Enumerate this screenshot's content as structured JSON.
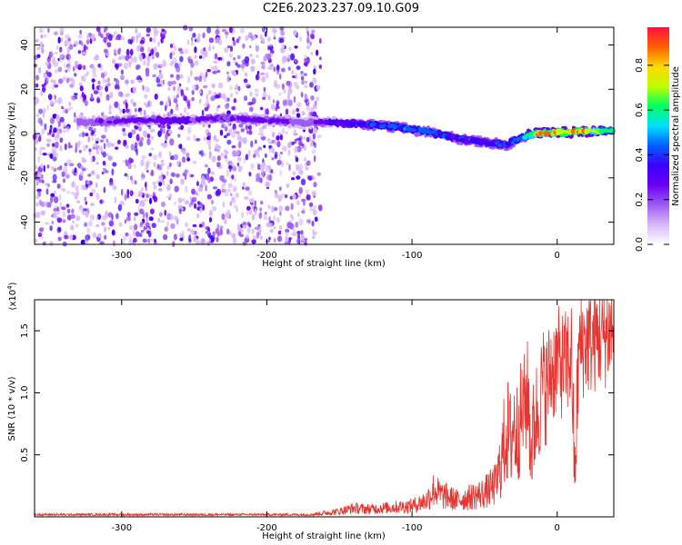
{
  "title": "C2E6.2023.237.09.10.G09",
  "chart_data": [
    {
      "type": "heatmap",
      "xlabel": "Height of straight line (km)",
      "ylabel": "Frequency (Hz)",
      "xlim": [
        -360,
        39
      ],
      "ylim": [
        -50,
        48
      ],
      "x_ticks": [
        -300,
        -200,
        -100,
        0
      ],
      "x_tick_labels": [
        "-300",
        "-200",
        "-100",
        "0"
      ],
      "y_ticks": [
        -40,
        -20,
        0,
        20,
        40
      ],
      "y_tick_labels": [
        "-40",
        "-20",
        "0",
        "20",
        "40"
      ],
      "colorbar": {
        "label": "Normalized spectral amplitude",
        "range": [
          0,
          0.97
        ],
        "ticks": [
          0.0,
          0.2,
          0.4,
          0.6,
          0.8
        ],
        "tick_labels": [
          "0.0",
          "0.2",
          "0.4",
          "0.6",
          "0.8"
        ],
        "colormap": [
          "#ffffff",
          "#d8b8f8",
          "#9c5cf2",
          "#6c00f0",
          "#3a00ff",
          "#0060ff",
          "#00e0ff",
          "#00ff60",
          "#c0ff00",
          "#ffd800",
          "#ff6000",
          "#ff1040"
        ]
      },
      "noise_region": {
        "x_range": [
          -360,
          -163
        ],
        "frequency_range": [
          -50,
          48
        ]
      },
      "signal_trace": [
        {
          "x": -330,
          "freq": 5,
          "amp": 0.2
        },
        {
          "x": -290,
          "freq": 6,
          "amp": 0.3
        },
        {
          "x": -260,
          "freq": 6,
          "amp": 0.35
        },
        {
          "x": -230,
          "freq": 7,
          "amp": 0.25
        },
        {
          "x": -200,
          "freq": 6,
          "amp": 0.3
        },
        {
          "x": -175,
          "freq": 5,
          "amp": 0.2
        },
        {
          "x": -155,
          "freq": 5,
          "amp": 0.35
        },
        {
          "x": -130,
          "freq": 4,
          "amp": 0.45
        },
        {
          "x": -110,
          "freq": 3,
          "amp": 0.5
        },
        {
          "x": -90,
          "freq": 1,
          "amp": 0.5
        },
        {
          "x": -70,
          "freq": -2,
          "amp": 0.45
        },
        {
          "x": -50,
          "freq": -4,
          "amp": 0.4
        },
        {
          "x": -35,
          "freq": -5,
          "amp": 0.45
        },
        {
          "x": -25,
          "freq": -2,
          "amp": 0.5
        },
        {
          "x": -15,
          "freq": 0,
          "amp": 0.85
        },
        {
          "x": 0,
          "freq": 0.5,
          "amp": 0.9
        },
        {
          "x": 15,
          "freq": 1,
          "amp": 0.9
        },
        {
          "x": 39,
          "freq": 1,
          "amp": 0.6
        }
      ]
    },
    {
      "type": "line",
      "xlabel": "Height of straight line (km)",
      "ylabel": "SNR (10 * v/v)",
      "y_scale_label": "(x10",
      "y_scale_exponent": "4",
      "y_scale_close": ")",
      "xlim": [
        -360,
        39
      ],
      "ylim": [
        0,
        1.75
      ],
      "x_ticks": [
        -300,
        -200,
        -100,
        0
      ],
      "x_tick_labels": [
        "-300",
        "-200",
        "-100",
        "0"
      ],
      "y_ticks": [
        0.5,
        1.0,
        1.5
      ],
      "y_tick_labels": [
        "0.5",
        "1.0",
        "1.5"
      ],
      "line_color": "#e8332e",
      "series": [
        {
          "x": [
            -360,
            -300,
            -200,
            -170,
            -150,
            -140,
            -130,
            -120,
            -110,
            -100,
            -90,
            -85,
            -80,
            -75,
            -70,
            -60,
            -50,
            -42,
            -38,
            -35,
            -32,
            -30,
            -28,
            -25,
            -22,
            -20,
            -18,
            -15,
            -12,
            -10,
            -8,
            -5,
            -2,
            0,
            5,
            10,
            12,
            15,
            20,
            25,
            30,
            35,
            39
          ],
          "y": [
            0.02,
            0.02,
            0.02,
            0.02,
            0.05,
            0.08,
            0.07,
            0.08,
            0.09,
            0.1,
            0.15,
            0.25,
            0.2,
            0.18,
            0.15,
            0.18,
            0.22,
            0.3,
            0.55,
            0.8,
            0.7,
            0.85,
            0.75,
            0.9,
            1.0,
            1.1,
            0.6,
            0.9,
            1.0,
            1.2,
            1.1,
            1.25,
            1.3,
            1.35,
            1.3,
            1.4,
            0.35,
            1.45,
            1.5,
            1.52,
            1.55,
            1.58,
            1.6
          ]
        }
      ]
    }
  ]
}
